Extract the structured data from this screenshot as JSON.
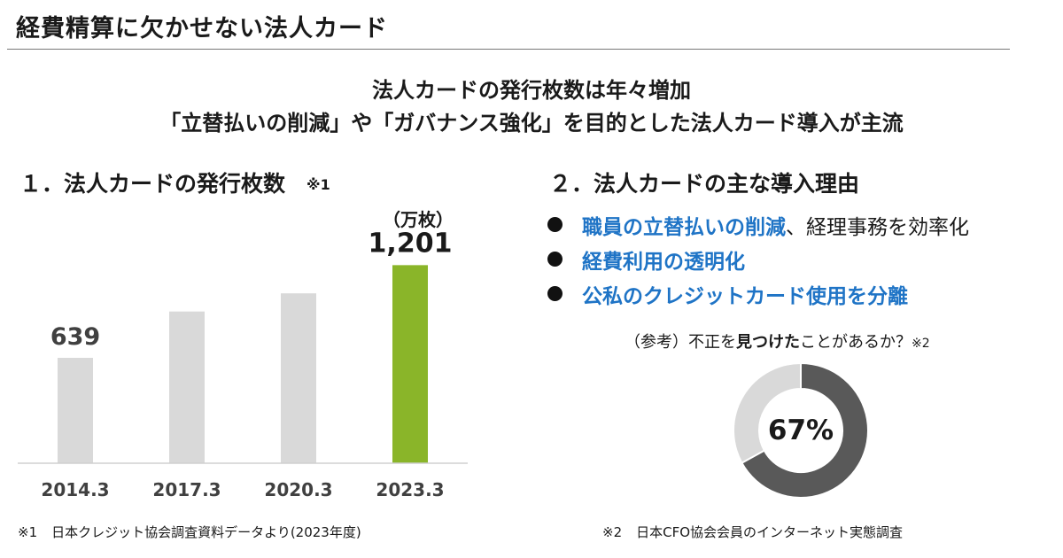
{
  "page_title": "経費精算に欠かせない法人カード",
  "headline": {
    "line1": "法人カードの発行枚数は年々増加",
    "line2": "「立替払いの削減」や「ガバナンス強化」を目的とした法人カード導入が主流"
  },
  "section1": {
    "heading": "１．法人カードの発行枚数",
    "note_marker": "※1",
    "unit": "（万枚）"
  },
  "section2": {
    "heading": "２．法人カードの主な導入理由",
    "bullets": [
      {
        "highlight": "職員の立替払いの削減",
        "rest": "、経理事務を効率化"
      },
      {
        "highlight": "経費利用の透明化",
        "rest": ""
      },
      {
        "highlight": "公私のクレジットカード使用を分離",
        "rest": ""
      }
    ],
    "reference": {
      "prefix": "（参考）不正を",
      "bold": "見つけた",
      "suffix": "ことがあるか？",
      "note": "※2"
    }
  },
  "footnotes": {
    "note1_marker": "※1",
    "note1_text": "日本クレジット協会調査資料データより(2023年度)",
    "note2_marker": "※2",
    "note2_text": "日本CFO協会会員のインターネット実態調査"
  },
  "colors": {
    "bar_default": "#d9d9d9",
    "bar_highlight": "#8ab529",
    "highlight_text": "#1f74c6",
    "donut_main": "#595959",
    "donut_rest": "#d9d9d9"
  },
  "chart_data": [
    {
      "type": "bar",
      "title": "１．法人カードの発行枚数",
      "categories": [
        "2014.3",
        "2017.3",
        "2020.3",
        "2023.3"
      ],
      "values": [
        639,
        920,
        1030,
        1201
      ],
      "data_labels": [
        "639",
        "",
        "",
        "1,201"
      ],
      "ylabel": "（万枚）",
      "ylim": [
        0,
        1400
      ],
      "highlight_index": 3,
      "grid": false
    },
    {
      "type": "pie",
      "variant": "donut",
      "title": "（参考）不正を見つけたことがあるか？",
      "slices": [
        {
          "value": 67,
          "color": "#595959"
        },
        {
          "value": 33,
          "color": "#d9d9d9"
        }
      ],
      "center_label": "67%"
    }
  ]
}
